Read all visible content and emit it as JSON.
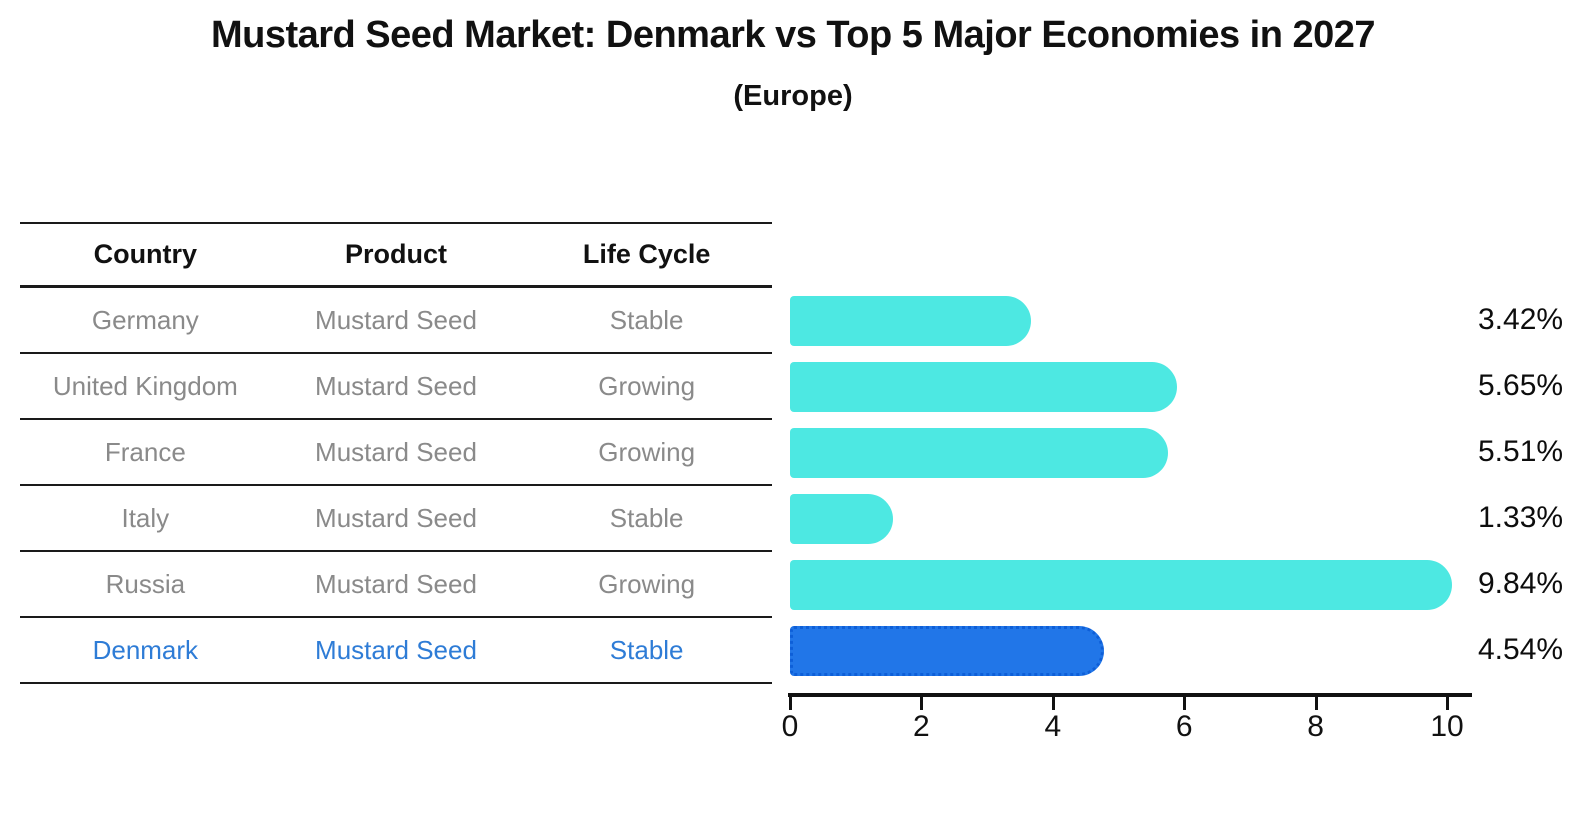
{
  "title": "Mustard Seed Market: Denmark vs Top 5 Major Economies in 2027",
  "subtitle": "(Europe)",
  "table": {
    "headers": [
      "Country",
      "Product",
      "Life Cycle"
    ],
    "rows": [
      {
        "country": "Germany",
        "product": "Mustard Seed",
        "life_cycle": "Stable",
        "highlight": false
      },
      {
        "country": "United Kingdom",
        "product": "Mustard Seed",
        "life_cycle": "Growing",
        "highlight": false
      },
      {
        "country": "France",
        "product": "Mustard Seed",
        "life_cycle": "Growing",
        "highlight": false
      },
      {
        "country": "Italy",
        "product": "Mustard Seed",
        "life_cycle": "Stable",
        "highlight": false
      },
      {
        "country": "Russia",
        "product": "Mustard Seed",
        "life_cycle": "Growing",
        "highlight": false
      },
      {
        "country": "Denmark",
        "product": "Mustard Seed",
        "life_cycle": "Stable",
        "highlight": true
      }
    ]
  },
  "chart_data": {
    "type": "bar",
    "orientation": "horizontal",
    "title": "Mustard Seed Market: Denmark vs Top 5 Major Economies in 2027",
    "subtitle": "(Europe)",
    "categories": [
      "Germany",
      "United Kingdom",
      "France",
      "Italy",
      "Russia",
      "Denmark"
    ],
    "values": [
      3.42,
      5.65,
      5.51,
      1.33,
      9.84,
      4.54
    ],
    "value_labels": [
      "3.42%",
      "5.65%",
      "5.51%",
      "1.33%",
      "9.84%",
      "4.54%"
    ],
    "x_ticks": [
      0,
      2,
      4,
      6,
      8,
      10
    ],
    "xlim": [
      0,
      10.3
    ],
    "grid": false,
    "legend": "none",
    "highlight_index": 5,
    "colors": {
      "bar": "#4DE8E2",
      "highlight_bar": "#2176E8",
      "highlight_bar_border": "#0E5FD8",
      "table_text": "#8A8A8A",
      "highlight_text": "#2E7CD6",
      "axis": "#111111"
    }
  }
}
